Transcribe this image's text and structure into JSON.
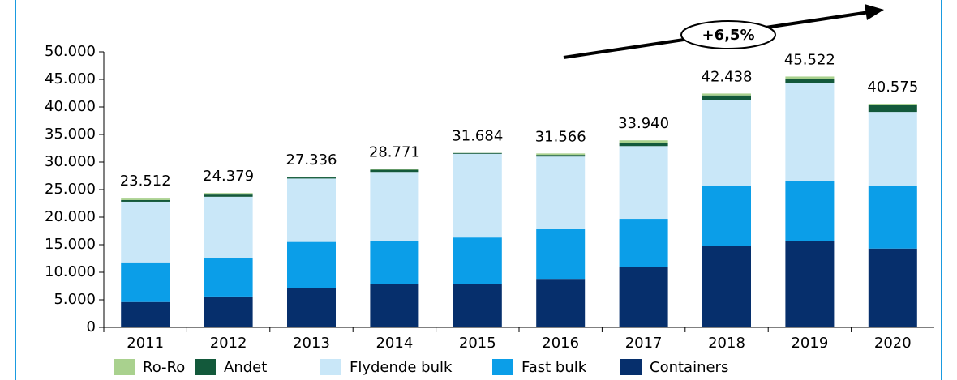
{
  "chart_data": {
    "type": "bar",
    "stacked": true,
    "categories": [
      "2011",
      "2012",
      "2013",
      "2014",
      "2015",
      "2016",
      "2017",
      "2018",
      "2019",
      "2020"
    ],
    "series": [
      {
        "name": "Ro-Ro",
        "color": "#a9d18e",
        "values": [
          412,
          279,
          136,
          171,
          34,
          266,
          440,
          338,
          522,
          275
        ]
      },
      {
        "name": "Andet",
        "color": "#13593b",
        "values": [
          300,
          400,
          200,
          400,
          150,
          300,
          600,
          800,
          700,
          1200
        ]
      },
      {
        "name": "Flydende bulk",
        "color": "#c9e7f8",
        "values": [
          11000,
          11200,
          11500,
          12500,
          15200,
          13200,
          13200,
          15600,
          17800,
          13500
        ]
      },
      {
        "name": "Fast bulk",
        "color": "#0b9ee8",
        "values": [
          7200,
          6900,
          8400,
          7800,
          8500,
          9000,
          8800,
          10900,
          10900,
          11300
        ]
      },
      {
        "name": "Containers",
        "color": "#062f6c",
        "values": [
          4600,
          5600,
          7100,
          7900,
          7800,
          8800,
          10900,
          14800,
          15600,
          14300
        ]
      }
    ],
    "totals": [
      23512,
      24379,
      27336,
      28771,
      31684,
      31566,
      33940,
      42438,
      45522,
      40575
    ],
    "value_labels": [
      "23.512",
      "24.379",
      "27.336",
      "28.771",
      "31.684",
      "31.566",
      "33.940",
      "42.438",
      "45.522",
      "40.575"
    ],
    "annotation": "+6,5%",
    "ylim": [
      0,
      50000
    ],
    "yticks": [
      0,
      {
        "value": 5000,
        "label": "5.000"
      },
      {
        "value": 10000,
        "label": "10.000"
      },
      {
        "value": 15000,
        "label": "15.000"
      },
      {
        "value": 20000,
        "label": "20.000"
      },
      {
        "value": 25000,
        "label": "25.000"
      },
      {
        "value": 30000,
        "label": "30.000"
      },
      {
        "value": 35000,
        "label": "35.000"
      },
      {
        "value": 40000,
        "label": "40.000"
      },
      {
        "value": 45000,
        "label": "45.000"
      },
      {
        "value": 50000,
        "label": "50.000"
      }
    ],
    "legend": "bottom"
  }
}
